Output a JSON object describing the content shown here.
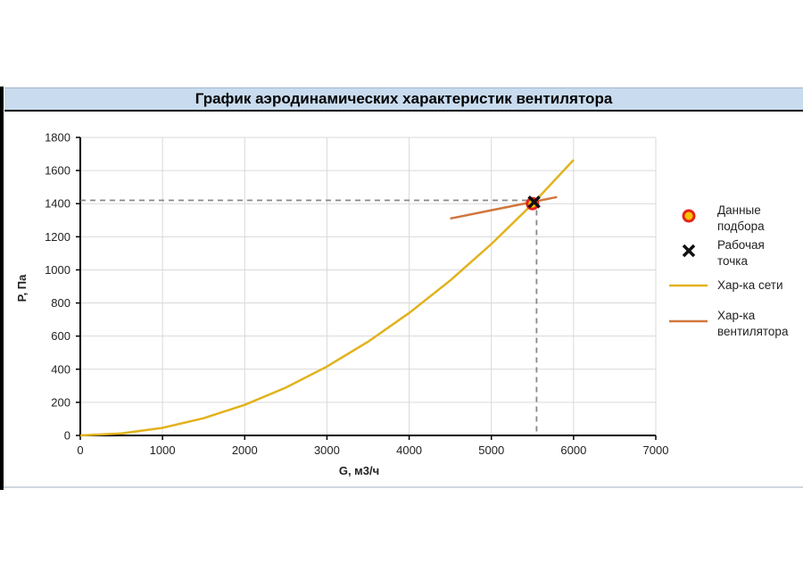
{
  "chart_data": {
    "type": "line",
    "title": "График аэродинамических характеристик вентилятора",
    "xlabel": "G, м3/ч",
    "ylabel": "P, Па",
    "xlim": [
      0,
      7000
    ],
    "ylim": [
      0,
      1800
    ],
    "x_ticks": [
      0,
      1000,
      2000,
      3000,
      4000,
      5000,
      6000,
      7000
    ],
    "y_ticks": [
      0,
      200,
      400,
      600,
      800,
      1000,
      1200,
      1400,
      1600,
      1800
    ],
    "grid": true,
    "legend_position": "right",
    "series": [
      {
        "name": "Хар-ка сети",
        "kind": "line",
        "color": "#e2b21c",
        "x": [
          0,
          500,
          1000,
          1500,
          2000,
          2500,
          3000,
          3500,
          4000,
          4500,
          5000,
          5500,
          6000
        ],
        "y": [
          0,
          12,
          46,
          104,
          185,
          289,
          416,
          566,
          740,
          936,
          1156,
          1398,
          1664
        ]
      },
      {
        "name": "Хар-ка вентилятора",
        "kind": "line",
        "color": "#d0773c",
        "x": [
          4500,
          5000,
          5500,
          5800
        ],
        "y": [
          1310,
          1360,
          1410,
          1440
        ]
      },
      {
        "name": "Данные подбора",
        "kind": "marker-circle",
        "color": "#e8231c",
        "x": [
          5500
        ],
        "y": [
          1400
        ]
      },
      {
        "name": "Рабочая точка",
        "kind": "marker-x",
        "color": "#111111",
        "x": [
          5520
        ],
        "y": [
          1410
        ]
      }
    ],
    "guide_lines": {
      "x": 5550,
      "y": 1420,
      "color": "#888888"
    }
  }
}
